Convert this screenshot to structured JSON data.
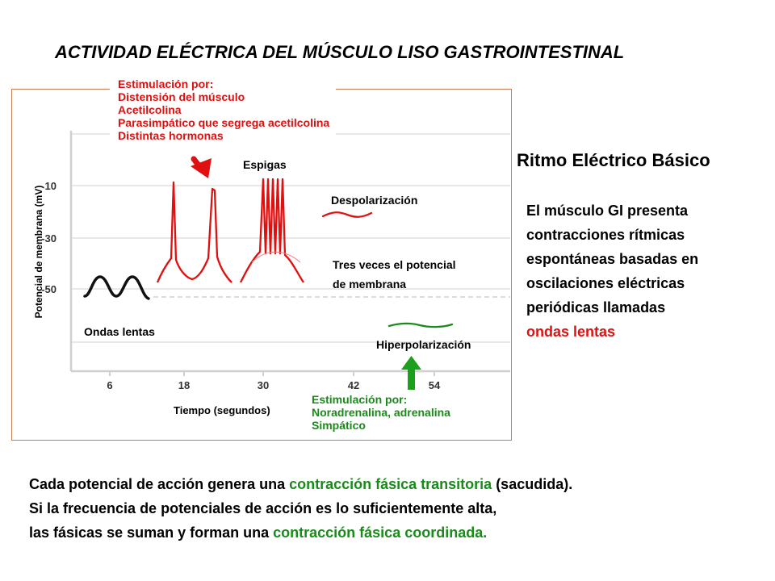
{
  "title": "ACTIVIDAD ELÉCTRICA DEL MÚSCULO LISO GASTROINTESTINAL",
  "diagram": {
    "stim_top": {
      "heading": "Estimulación por:",
      "lines": [
        "Distensión del músculo",
        "Acetilcolina",
        "Parasimpático que segrega acetilcolina",
        "Distintas hormonas"
      ]
    },
    "stim_bottom": {
      "heading": "Estimulación por:",
      "lines": [
        "Noradrenalina, adrenalina",
        "Simpático"
      ]
    },
    "y_axis_label": "Potencial de membrana (mV)",
    "x_axis_label": "Tiempo (segundos)",
    "y_ticks": [
      "10",
      "-30",
      "-50"
    ],
    "x_ticks": [
      "6",
      "18",
      "30",
      "42",
      "54"
    ],
    "labels": {
      "espigas": "Espigas",
      "despolarizacion": "Despolarización",
      "tres_veces_1": "Tres veces el potencial",
      "tres_veces_2": "de membrana",
      "ondas_lentas": "Ondas lentas",
      "hiperpolarizacion": "Hiperpolarización"
    },
    "colors": {
      "trace": "#e01010",
      "slow_wave": "#111111",
      "hyper": "#1a8a1a",
      "arrow_down": "#e01010",
      "arrow_up": "#1aa01a"
    }
  },
  "ber": {
    "title": "Ritmo Eléctrico Básico",
    "lines": [
      "El músculo GI presenta",
      "contracciones rítmicas",
      "espontáneas basadas en",
      "oscilaciones eléctricas",
      "periódicas llamadas"
    ],
    "highlight": "ondas lentas"
  },
  "bottom": {
    "line1_a": "Cada potencial de acción genera una ",
    "line1_hl": "contracción fásica transitoria",
    "line1_b": " (sacudida).",
    "line2": "Si la frecuencia de potenciales de acción es lo suficientemente alta,",
    "line3_a": "las fásicas se suman y forman una ",
    "line3_hl": "contracción fásica coordinada."
  }
}
